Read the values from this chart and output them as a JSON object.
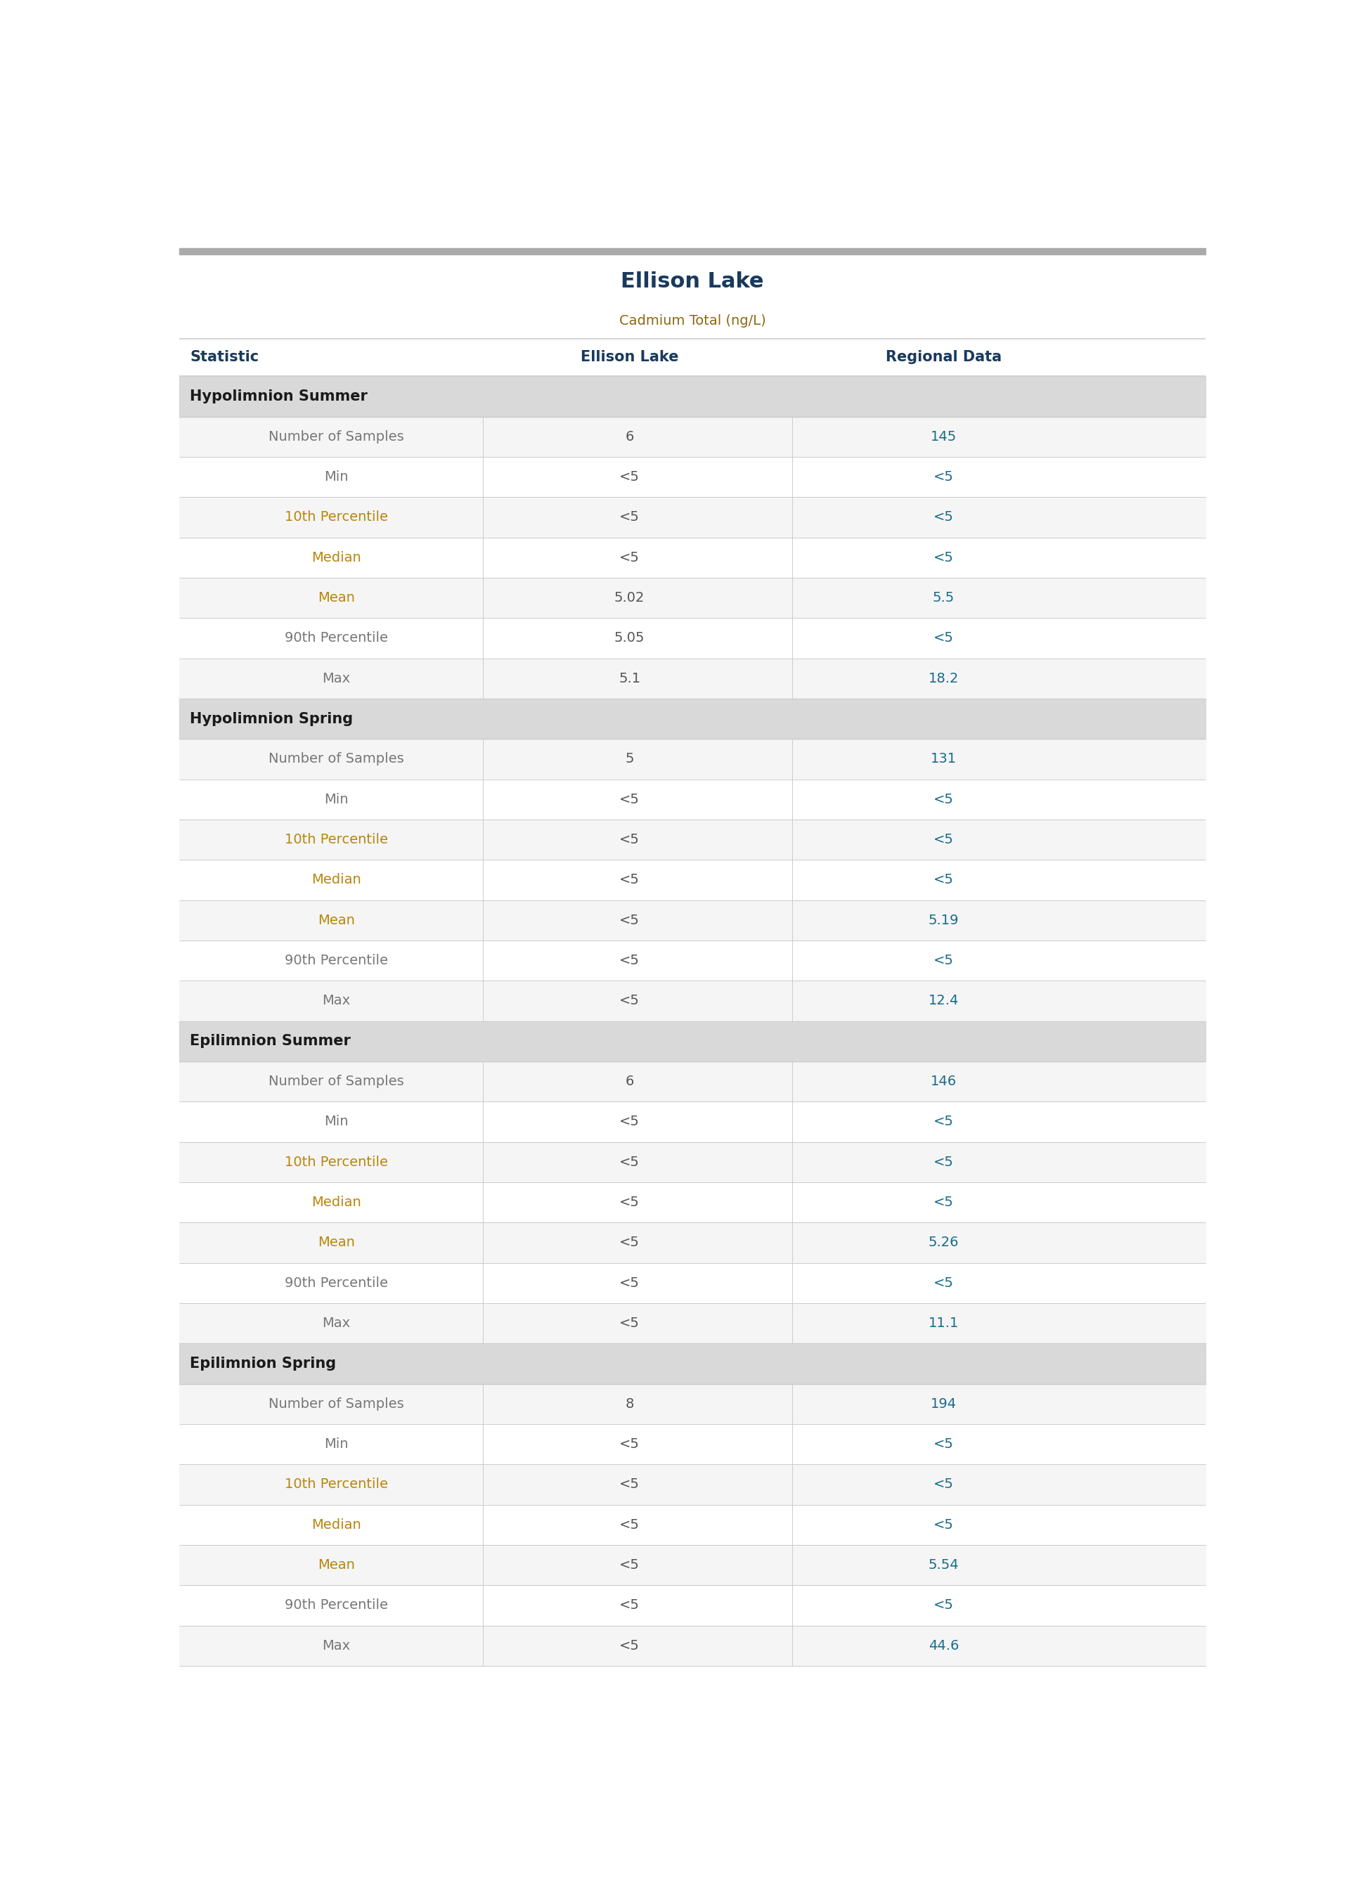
{
  "title": "Ellison Lake",
  "subtitle": "Cadmium Total (ng/L)",
  "col_headers": [
    "Statistic",
    "Ellison Lake",
    "Regional Data"
  ],
  "sections": [
    {
      "name": "Hypolimnion Summer",
      "rows": [
        [
          "Number of Samples",
          "6",
          "145"
        ],
        [
          "Min",
          "<5",
          "<5"
        ],
        [
          "10th Percentile",
          "<5",
          "<5"
        ],
        [
          "Median",
          "<5",
          "<5"
        ],
        [
          "Mean",
          "5.02",
          "5.5"
        ],
        [
          "90th Percentile",
          "5.05",
          "<5"
        ],
        [
          "Max",
          "5.1",
          "18.2"
        ]
      ]
    },
    {
      "name": "Hypolimnion Spring",
      "rows": [
        [
          "Number of Samples",
          "5",
          "131"
        ],
        [
          "Min",
          "<5",
          "<5"
        ],
        [
          "10th Percentile",
          "<5",
          "<5"
        ],
        [
          "Median",
          "<5",
          "<5"
        ],
        [
          "Mean",
          "<5",
          "5.19"
        ],
        [
          "90th Percentile",
          "<5",
          "<5"
        ],
        [
          "Max",
          "<5",
          "12.4"
        ]
      ]
    },
    {
      "name": "Epilimnion Summer",
      "rows": [
        [
          "Number of Samples",
          "6",
          "146"
        ],
        [
          "Min",
          "<5",
          "<5"
        ],
        [
          "10th Percentile",
          "<5",
          "<5"
        ],
        [
          "Median",
          "<5",
          "<5"
        ],
        [
          "Mean",
          "<5",
          "5.26"
        ],
        [
          "90th Percentile",
          "<5",
          "<5"
        ],
        [
          "Max",
          "<5",
          "11.1"
        ]
      ]
    },
    {
      "name": "Epilimnion Spring",
      "rows": [
        [
          "Number of Samples",
          "8",
          "194"
        ],
        [
          "Min",
          "<5",
          "<5"
        ],
        [
          "10th Percentile",
          "<5",
          "<5"
        ],
        [
          "Median",
          "<5",
          "<5"
        ],
        [
          "Mean",
          "<5",
          "5.54"
        ],
        [
          "90th Percentile",
          "<5",
          "<5"
        ],
        [
          "Max",
          "<5",
          "44.6"
        ]
      ]
    }
  ],
  "title_color": "#1a3a5c",
  "subtitle_color": "#8b6914",
  "section_header_bg": "#d9d9d9",
  "section_header_color": "#1a1a1a",
  "col_header_color": "#1a3a5c",
  "data_color_ellison": "#555555",
  "data_color_regional": "#1a6b8a",
  "row_bg_odd": "#f5f5f5",
  "row_bg_even": "#ffffff",
  "separator_color": "#cccccc",
  "top_border_color": "#aaaaaa",
  "statistic_color_normal": "#777777",
  "statistic_color_orange": "#b8860b",
  "title_fontsize": 22,
  "subtitle_fontsize": 14,
  "col_header_fontsize": 15,
  "section_header_fontsize": 15,
  "data_fontsize": 14
}
